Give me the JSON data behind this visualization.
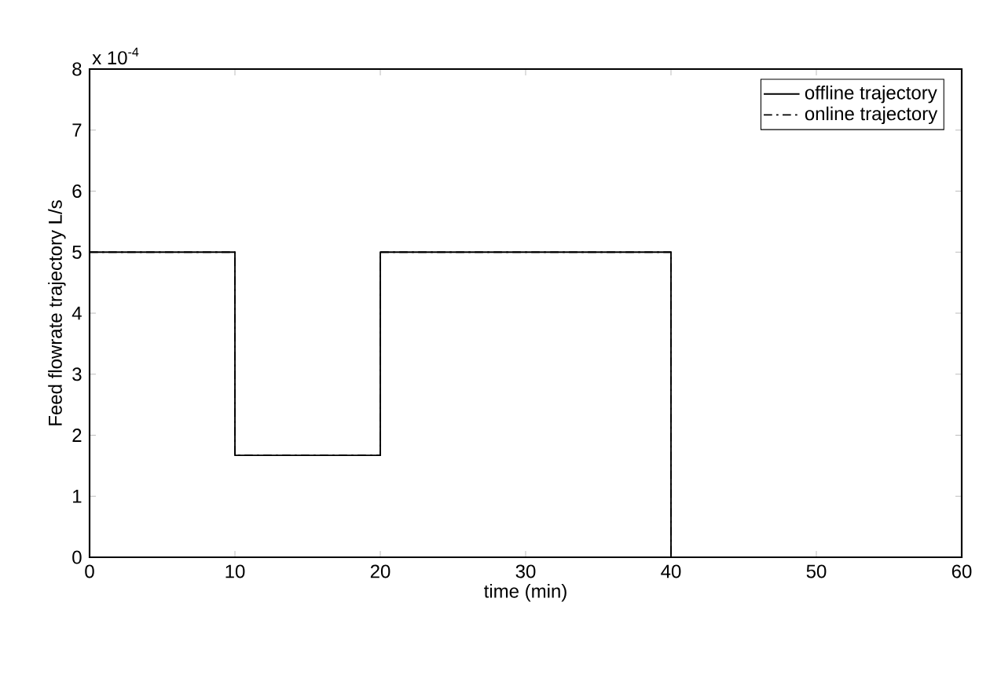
{
  "chart_data": {
    "type": "step",
    "xlabel": "time (min)",
    "ylabel": "Feed flowrate trajectory L/s",
    "annotations": [
      "x 10$^{-4}$"
    ],
    "xlim": [
      0,
      60
    ],
    "ylim": [
      0,
      8
    ],
    "xticks": [
      0,
      10,
      20,
      30,
      40,
      50,
      60
    ],
    "yticks": [
      0,
      1,
      2,
      3,
      4,
      5,
      6,
      7,
      8
    ],
    "grid": false,
    "legend": "top right",
    "series": [
      {
        "name": "offline trajectory",
        "color": "#000000",
        "line_style": "solid",
        "x": [
          0,
          10,
          20,
          40,
          60
        ],
        "values": [
          5,
          1.67,
          5,
          0,
          0
        ]
      },
      {
        "name": "online trajectory",
        "color": "#000000",
        "line_style": "dashed",
        "x": [
          0,
          10,
          20,
          40,
          60
        ],
        "values": [
          5,
          1.67,
          5,
          0,
          0
        ]
      }
    ]
  }
}
